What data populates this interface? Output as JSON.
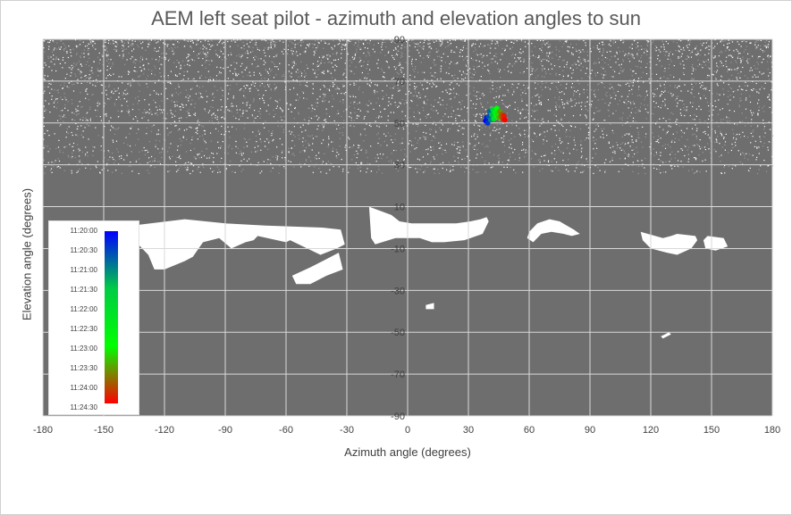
{
  "chart_data": {
    "type": "scatter",
    "title": "AEM left seat pilot - azimuth and elevation angles to sun",
    "xlabel": "Azimuth angle (degrees)",
    "ylabel": "Elevation angle (degrees)",
    "xlim": [
      -180,
      180
    ],
    "ylim": [
      -90,
      90
    ],
    "xticks": [
      "-180",
      "-150",
      "-120",
      "-90",
      "-60",
      "-30",
      "0",
      "30",
      "60",
      "90",
      "120",
      "150",
      "180"
    ],
    "yticks": [
      "90",
      "70",
      "50",
      "30",
      "10",
      "-10",
      "-30",
      "-50",
      "-70",
      "-90"
    ],
    "grid": true,
    "background_color": "#6e6e6e",
    "window_color": "#ffffff",
    "windows": [
      [
        [
          -139,
          -3
        ],
        [
          -136,
          1
        ],
        [
          -110,
          4
        ],
        [
          -90,
          2
        ],
        [
          -70,
          1
        ],
        [
          -42,
          0
        ],
        [
          -33,
          -1
        ],
        [
          -31,
          -8
        ],
        [
          -35,
          -10
        ],
        [
          -43,
          -13
        ],
        [
          -58,
          -6
        ],
        [
          -60,
          -7
        ],
        [
          -74,
          -4
        ],
        [
          -76,
          -6
        ],
        [
          -80,
          -7
        ],
        [
          -87,
          -10
        ],
        [
          -93,
          -5
        ],
        [
          -101,
          -7
        ],
        [
          -106,
          -14
        ],
        [
          -110,
          -16
        ],
        [
          -120,
          -20
        ],
        [
          -125,
          -20
        ],
        [
          -128,
          -13
        ],
        [
          -135,
          -6
        ]
      ],
      [
        [
          -57,
          -23
        ],
        [
          -48,
          -19
        ],
        [
          -40,
          -15
        ],
        [
          -34,
          -12
        ],
        [
          -32,
          -20
        ],
        [
          -40,
          -23
        ],
        [
          -48,
          -27
        ],
        [
          -55,
          -27
        ]
      ],
      [
        [
          -19,
          10
        ],
        [
          -8,
          6
        ],
        [
          -4,
          3
        ],
        [
          2,
          2
        ],
        [
          12,
          2
        ],
        [
          24,
          2
        ],
        [
          31,
          3
        ],
        [
          36,
          4
        ],
        [
          39,
          5
        ],
        [
          40,
          3
        ],
        [
          37,
          -3
        ],
        [
          28,
          -6
        ],
        [
          18,
          -7
        ],
        [
          12,
          -7
        ],
        [
          6,
          -5
        ],
        [
          -6,
          -5
        ],
        [
          -16,
          -8
        ],
        [
          -18,
          -5
        ]
      ],
      [
        [
          62,
          -7
        ],
        [
          66,
          -3
        ],
        [
          71,
          -2
        ],
        [
          77,
          -3
        ],
        [
          81,
          -4
        ],
        [
          85,
          -3
        ],
        [
          82,
          -1
        ],
        [
          75,
          3
        ],
        [
          70,
          4
        ],
        [
          64,
          2
        ],
        [
          60,
          -2
        ],
        [
          59,
          -5
        ]
      ],
      [
        [
          115,
          -2
        ],
        [
          126,
          -5
        ],
        [
          130,
          -4
        ],
        [
          133,
          -3
        ],
        [
          142,
          -4
        ],
        [
          143,
          -6
        ],
        [
          140,
          -10
        ],
        [
          133,
          -13
        ],
        [
          128,
          -12
        ],
        [
          120,
          -10
        ],
        [
          116,
          -6
        ]
      ],
      [
        [
          146,
          -6
        ],
        [
          148,
          -4
        ],
        [
          156,
          -5
        ],
        [
          158,
          -9
        ],
        [
          152,
          -11
        ],
        [
          147,
          -10
        ]
      ],
      [
        [
          9,
          -37
        ],
        [
          13,
          -36
        ],
        [
          13,
          -39
        ],
        [
          9,
          -39
        ]
      ],
      [
        [
          125,
          -52
        ],
        [
          129,
          -50
        ],
        [
          130,
          -51
        ],
        [
          126,
          -53
        ]
      ]
    ],
    "x": [
      38.5,
      39.0,
      39.5,
      40.0,
      40.5,
      41.0,
      41.5,
      42.0,
      42.5,
      43.0,
      43.5,
      44.0,
      44.5,
      45.0,
      45.5,
      46.0,
      46.5,
      47.0,
      47.5,
      48.0
    ],
    "y": [
      51.0,
      52.5,
      50.0,
      53.0,
      55.5,
      51.5,
      54.0,
      56.5,
      52.0,
      55.0,
      53.5,
      57.0,
      54.5,
      52.5,
      55.5,
      53.0,
      54.0,
      52.0,
      53.5,
      51.5
    ],
    "time": [
      "11:20:00",
      "11:20:12",
      "11:20:24",
      "11:20:36",
      "11:20:48",
      "11:21:00",
      "11:21:24",
      "11:21:48",
      "11:22:12",
      "11:22:36",
      "11:22:48",
      "11:23:00",
      "11:23:12",
      "11:23:24",
      "11:23:36",
      "11:23:48",
      "11:24:00",
      "11:24:10",
      "11:24:20",
      "11:24:30"
    ],
    "colorbar": {
      "labels": [
        "11:20:00",
        "11:20:30",
        "11:21:00",
        "11:21:30",
        "11:22:00",
        "11:22:30",
        "11:23:00",
        "11:23:30",
        "11:24:00",
        "11:24:30"
      ],
      "colors": [
        "#0000ff",
        "#00cc44",
        "#00ff00",
        "#ff0000"
      ]
    }
  }
}
